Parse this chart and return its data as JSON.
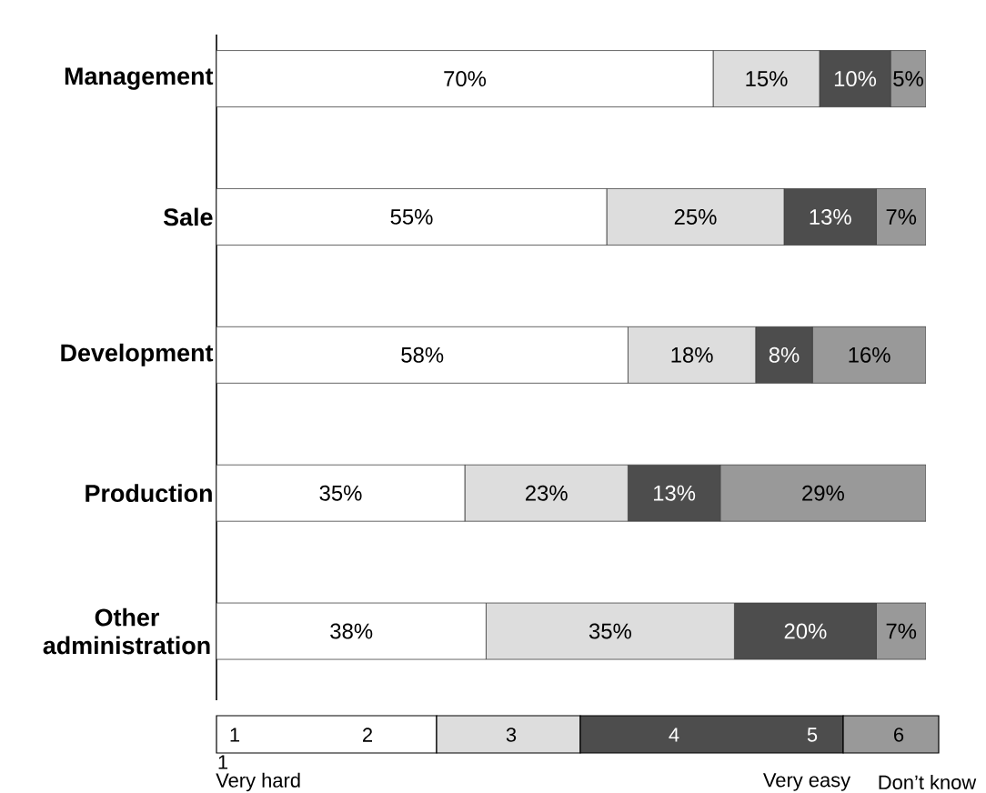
{
  "chart_data": {
    "type": "bar",
    "orientation": "horizontal",
    "stacked": true,
    "tick_labels": "y",
    "categories": [
      "Management",
      "Sale",
      "Development",
      "Production",
      "Other administration"
    ],
    "series": [
      {
        "color": "#ffffff",
        "values": [
          70,
          55,
          58,
          35,
          38
        ],
        "value_labels": [
          "70%",
          "55%",
          "58%",
          "35%",
          "38%"
        ]
      },
      {
        "color": "#dddddd",
        "values": [
          15,
          25,
          18,
          23,
          35
        ],
        "value_labels": [
          "15%",
          "25%",
          "18%",
          "23%",
          "35%"
        ]
      },
      {
        "color": "#4d4d4d",
        "values": [
          10,
          13,
          8,
          13,
          20
        ],
        "value_labels": [
          "10%",
          "13%",
          "8%",
          "13%",
          "20%"
        ]
      },
      {
        "color": "#999999",
        "values": [
          5,
          7,
          16,
          29,
          7
        ],
        "value_labels": [
          "5%",
          "7%",
          "16%",
          "29%",
          "7%"
        ]
      }
    ],
    "annotations": [
      "1",
      "2",
      "3",
      "4",
      "5",
      "6",
      "1",
      "Very hard",
      "Very easy",
      "Don’t know"
    ]
  }
}
